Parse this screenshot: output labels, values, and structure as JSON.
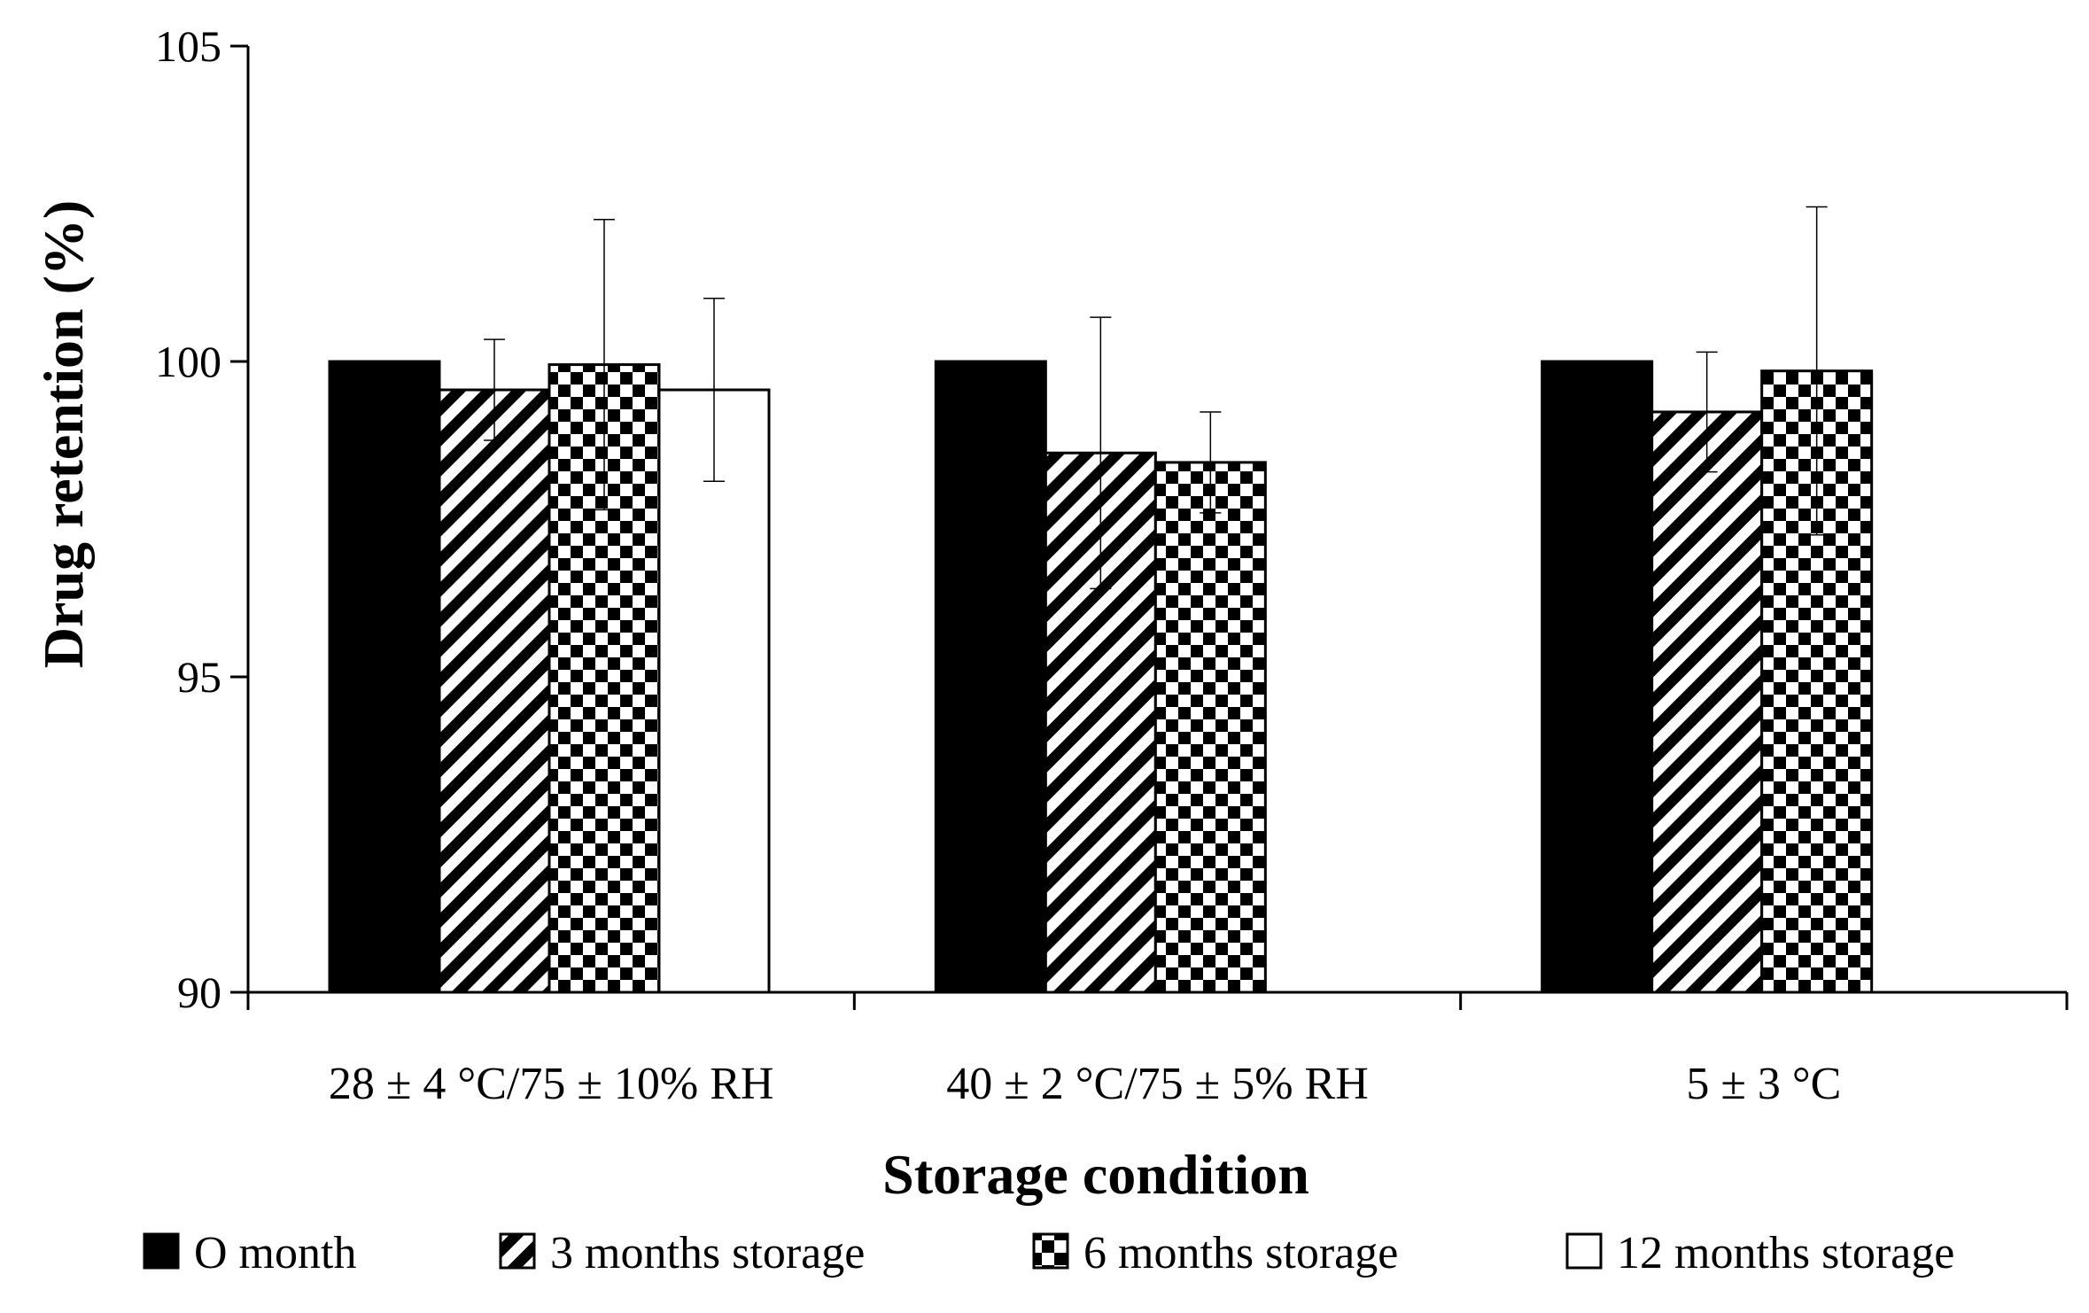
{
  "chart_data": {
    "type": "bar",
    "title": "",
    "xlabel": "Storage condition",
    "ylabel": "Drug retention (%)",
    "ylim": [
      90,
      105
    ],
    "yticks": [
      90,
      95,
      100,
      105
    ],
    "grid": false,
    "legend_position": "bottom",
    "categories": [
      "28 ± 4 °C/75 ± 10% RH",
      "40 ± 2 °C/75 ± 5% RH",
      "5 ± 3 °C"
    ],
    "series": [
      {
        "name": "O month",
        "pattern": "solid",
        "values": [
          100.0,
          100.0,
          100.0
        ],
        "errors": [
          0,
          0,
          0
        ]
      },
      {
        "name": "3 months storage",
        "pattern": "diagonal",
        "values": [
          99.55,
          98.55,
          99.2
        ],
        "errors": [
          0.8,
          2.15,
          0.95
        ]
      },
      {
        "name": "6 months storage",
        "pattern": "checker",
        "values": [
          99.95,
          98.4,
          99.85
        ],
        "errors": [
          2.3,
          0.8,
          2.6
        ]
      },
      {
        "name": "12 months storage",
        "pattern": "open",
        "values": [
          99.55,
          null,
          null
        ],
        "errors": [
          1.45,
          null,
          null
        ]
      }
    ]
  },
  "colors": {
    "ink": "#000000",
    "background": "#ffffff"
  }
}
